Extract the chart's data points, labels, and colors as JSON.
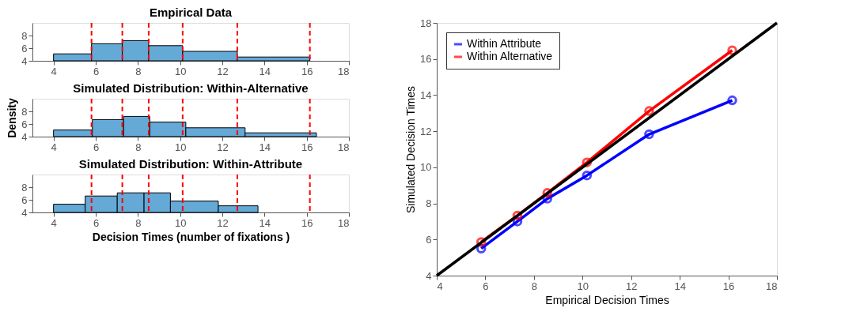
{
  "chart_data": [
    {
      "type": "histogram",
      "title": "Empirical Data",
      "bins": [
        4,
        5.8,
        7.26,
        8.51,
        10.12,
        12.71,
        16.15
      ],
      "values": [
        5.1,
        6.7,
        7.2,
        6.4,
        5.5,
        4.6
      ],
      "color": "#65a9d7",
      "xlim": [
        3,
        18
      ],
      "xticks": [
        4,
        6,
        8,
        10,
        12,
        14,
        16,
        18
      ],
      "ylim": [
        4,
        10
      ],
      "yticks": [
        4,
        6,
        8
      ],
      "grid": false,
      "ref_lines": [
        {
          "axis": "x",
          "value": 5.8,
          "color": "#ff0000",
          "line_style": "dashed"
        },
        {
          "axis": "x",
          "value": 7.26,
          "color": "#ff0000",
          "line_style": "dashed"
        },
        {
          "axis": "x",
          "value": 8.51,
          "color": "#ff0000",
          "line_style": "dashed"
        },
        {
          "axis": "x",
          "value": 10.12,
          "color": "#ff0000",
          "line_style": "dashed"
        },
        {
          "axis": "x",
          "value": 12.71,
          "color": "#ff0000",
          "line_style": "dashed"
        },
        {
          "axis": "x",
          "value": 16.15,
          "color": "#ff0000",
          "line_style": "dashed"
        }
      ]
    },
    {
      "type": "histogram",
      "title": "Simulated Distribution: Within-Alternative",
      "ylabel": "Density",
      "bins": [
        4,
        5.84,
        7.32,
        8.56,
        10.27,
        13.08,
        16.46
      ],
      "values": [
        5.05,
        6.7,
        7.2,
        6.3,
        5.4,
        4.6
      ],
      "color": "#65a9d7",
      "xlim": [
        3,
        18
      ],
      "xticks": [
        4,
        6,
        8,
        10,
        12,
        14,
        16,
        18
      ],
      "ylim": [
        4,
        10
      ],
      "yticks": [
        4,
        6,
        8
      ],
      "grid": false,
      "ref_lines": [
        {
          "axis": "x",
          "value": 5.8,
          "color": "#ff0000",
          "line_style": "dashed"
        },
        {
          "axis": "x",
          "value": 7.26,
          "color": "#ff0000",
          "line_style": "dashed"
        },
        {
          "axis": "x",
          "value": 8.51,
          "color": "#ff0000",
          "line_style": "dashed"
        },
        {
          "axis": "x",
          "value": 10.12,
          "color": "#ff0000",
          "line_style": "dashed"
        },
        {
          "axis": "x",
          "value": 12.71,
          "color": "#ff0000",
          "line_style": "dashed"
        },
        {
          "axis": "x",
          "value": 16.15,
          "color": "#ff0000",
          "line_style": "dashed"
        }
      ]
    },
    {
      "type": "histogram",
      "title": "Simulated Distribution: Within-Attribute",
      "xlabel": "Decision Times (number of fixations )",
      "bins": [
        4,
        5.5,
        7.02,
        8.29,
        9.54,
        11.81,
        13.69
      ],
      "values": [
        5.3,
        6.6,
        7.1,
        7.1,
        5.8,
        5.05
      ],
      "color": "#65a9d7",
      "xlim": [
        3,
        18
      ],
      "xticks": [
        4,
        6,
        8,
        10,
        12,
        14,
        16,
        18
      ],
      "ylim": [
        4,
        10
      ],
      "yticks": [
        4,
        6,
        8
      ],
      "grid": false,
      "ref_lines": [
        {
          "axis": "x",
          "value": 5.8,
          "color": "#ff0000",
          "line_style": "dashed"
        },
        {
          "axis": "x",
          "value": 7.26,
          "color": "#ff0000",
          "line_style": "dashed"
        },
        {
          "axis": "x",
          "value": 8.51,
          "color": "#ff0000",
          "line_style": "dashed"
        },
        {
          "axis": "x",
          "value": 10.12,
          "color": "#ff0000",
          "line_style": "dashed"
        },
        {
          "axis": "x",
          "value": 12.71,
          "color": "#ff0000",
          "line_style": "dashed"
        },
        {
          "axis": "x",
          "value": 16.15,
          "color": "#ff0000",
          "line_style": "dashed"
        }
      ]
    },
    {
      "type": "line",
      "xlabel": "Empirical Decision Times",
      "ylabel": "Simulated Decision Times",
      "xlim": [
        4,
        18
      ],
      "xticks": [
        4,
        6,
        8,
        10,
        12,
        14,
        16,
        18
      ],
      "ylim": [
        4,
        18
      ],
      "yticks": [
        4,
        6,
        8,
        10,
        12,
        14,
        16,
        18
      ],
      "grid": false,
      "legend": "top left",
      "marker": "circle",
      "line_style": "solid",
      "series": [
        {
          "name": "Within Attribute",
          "color": "#0000ff",
          "x": [
            5.83,
            7.32,
            8.55,
            10.18,
            12.74,
            16.16
          ],
          "values": [
            5.5,
            7.0,
            8.26,
            9.55,
            11.83,
            13.71
          ]
        },
        {
          "name": "Within Alternative",
          "color": "#ff0000",
          "x": [
            5.83,
            7.32,
            8.55,
            10.18,
            12.74,
            16.16
          ],
          "values": [
            5.86,
            7.33,
            8.58,
            10.27,
            13.12,
            16.48
          ]
        },
        {
          "color": "#000000",
          "x": [
            4,
            18
          ],
          "values": [
            4,
            18
          ],
          "marker": "none"
        }
      ]
    }
  ]
}
